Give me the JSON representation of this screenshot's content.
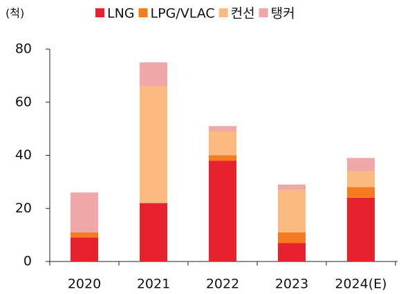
{
  "chart_data": {
    "type": "stacked_bar",
    "y_label": "(척)",
    "categories": [
      "2020",
      "2021",
      "2022",
      "2023",
      "2024(E)"
    ],
    "series": [
      {
        "name": "LNG",
        "color": "#e8212e",
        "values": [
          9,
          22,
          38,
          7,
          24
        ]
      },
      {
        "name": "LPG/VLAC",
        "color": "#f47b20",
        "values": [
          2,
          0,
          2,
          4,
          4
        ]
      },
      {
        "name": "컨선",
        "color": "#fbbb80",
        "values": [
          0,
          44,
          9,
          16,
          6
        ]
      },
      {
        "name": "탱커",
        "color": "#f0a7a7",
        "values": [
          15,
          9,
          2,
          2,
          5
        ]
      }
    ],
    "ylim": [
      0,
      80
    ],
    "yticks": [
      0,
      20,
      40,
      60,
      80
    ],
    "legend": "top"
  }
}
